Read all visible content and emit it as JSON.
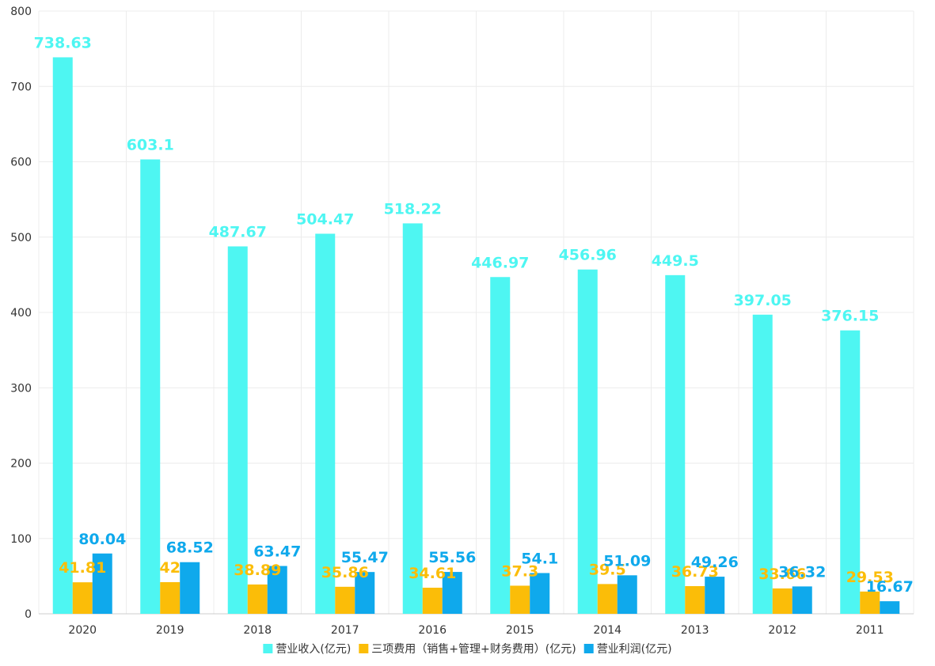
{
  "chart_data": {
    "type": "bar",
    "categories": [
      "2020",
      "2019",
      "2018",
      "2017",
      "2016",
      "2015",
      "2014",
      "2013",
      "2012",
      "2011"
    ],
    "series": [
      {
        "name": "营业收入(亿元)",
        "color": "#4ef6f2",
        "values": [
          738.63,
          603.1,
          487.67,
          504.47,
          518.22,
          446.97,
          456.96,
          449.5,
          397.05,
          376.15
        ]
      },
      {
        "name": "三项费用（销售+管理+财务费用）(亿元)",
        "color": "#fbbd08",
        "values": [
          41.81,
          42,
          38.89,
          35.86,
          34.61,
          37.3,
          39.5,
          36.73,
          33.66,
          29.53
        ]
      },
      {
        "name": "营业利润(亿元)",
        "color": "#0fa9ec",
        "values": [
          80.04,
          68.52,
          63.47,
          55.47,
          55.56,
          54.1,
          51.09,
          49.26,
          36.32,
          16.67
        ]
      }
    ],
    "ylim": [
      0,
      800
    ],
    "yticks": [
      0,
      100,
      200,
      300,
      400,
      500,
      600,
      700,
      800
    ],
    "grid": true,
    "legend_position": "bottom",
    "title": "",
    "xlabel": "",
    "ylabel": ""
  }
}
